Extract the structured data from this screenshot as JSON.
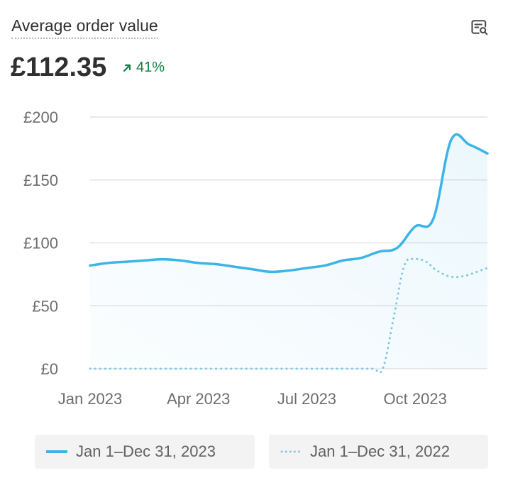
{
  "card": {
    "title": "Average order value",
    "value": "£112.35",
    "change": "41%",
    "change_direction": "up",
    "explore_icon": "chart-search-icon"
  },
  "colors": {
    "current": "#3db4e8",
    "previous": "#7fc9e0",
    "positive": "#108043",
    "grid": "#e3e3e3"
  },
  "chart_data": {
    "type": "line",
    "title": "",
    "xlabel": "",
    "ylabel": "",
    "ylim": [
      0,
      200
    ],
    "yticks": [
      0,
      50,
      100,
      150,
      200
    ],
    "ytick_labels": [
      "£0",
      "£50",
      "£100",
      "£150",
      "£200"
    ],
    "xtick_labels": [
      "Jan 2023",
      "Apr 2023",
      "Jul 2023",
      "Oct 2023"
    ],
    "xtick_positions": [
      0,
      3,
      6,
      9
    ],
    "xlim": [
      0,
      11
    ],
    "grid": true,
    "legend_position": "bottom",
    "series": [
      {
        "name": "Jan 1–Dec 31, 2023",
        "style": "solid",
        "area_fill": true,
        "x": [
          0,
          0.5,
          1,
          1.5,
          2,
          2.5,
          3,
          3.5,
          4,
          4.5,
          5,
          5.5,
          6,
          6.5,
          7,
          7.5,
          8,
          8.5,
          9,
          9.5,
          10,
          10.5,
          11
        ],
        "values": [
          82,
          84,
          85,
          86,
          87,
          86,
          84,
          83,
          81,
          79,
          77,
          78,
          80,
          82,
          86,
          88,
          93,
          96,
          113,
          119,
          182,
          178,
          171
        ]
      },
      {
        "name": "Jan 1–Dec 31, 2022",
        "style": "dotted",
        "area_fill": false,
        "x": [
          0,
          1,
          2,
          3,
          4,
          5,
          6,
          7,
          7.8,
          8.1,
          8.4,
          8.7,
          9,
          9.3,
          9.6,
          10,
          10.4,
          10.8,
          11
        ],
        "values": [
          0,
          0,
          0,
          0,
          0,
          0,
          0,
          0,
          0,
          0,
          40,
          82,
          87,
          85,
          78,
          73,
          74,
          78,
          80
        ]
      }
    ]
  }
}
